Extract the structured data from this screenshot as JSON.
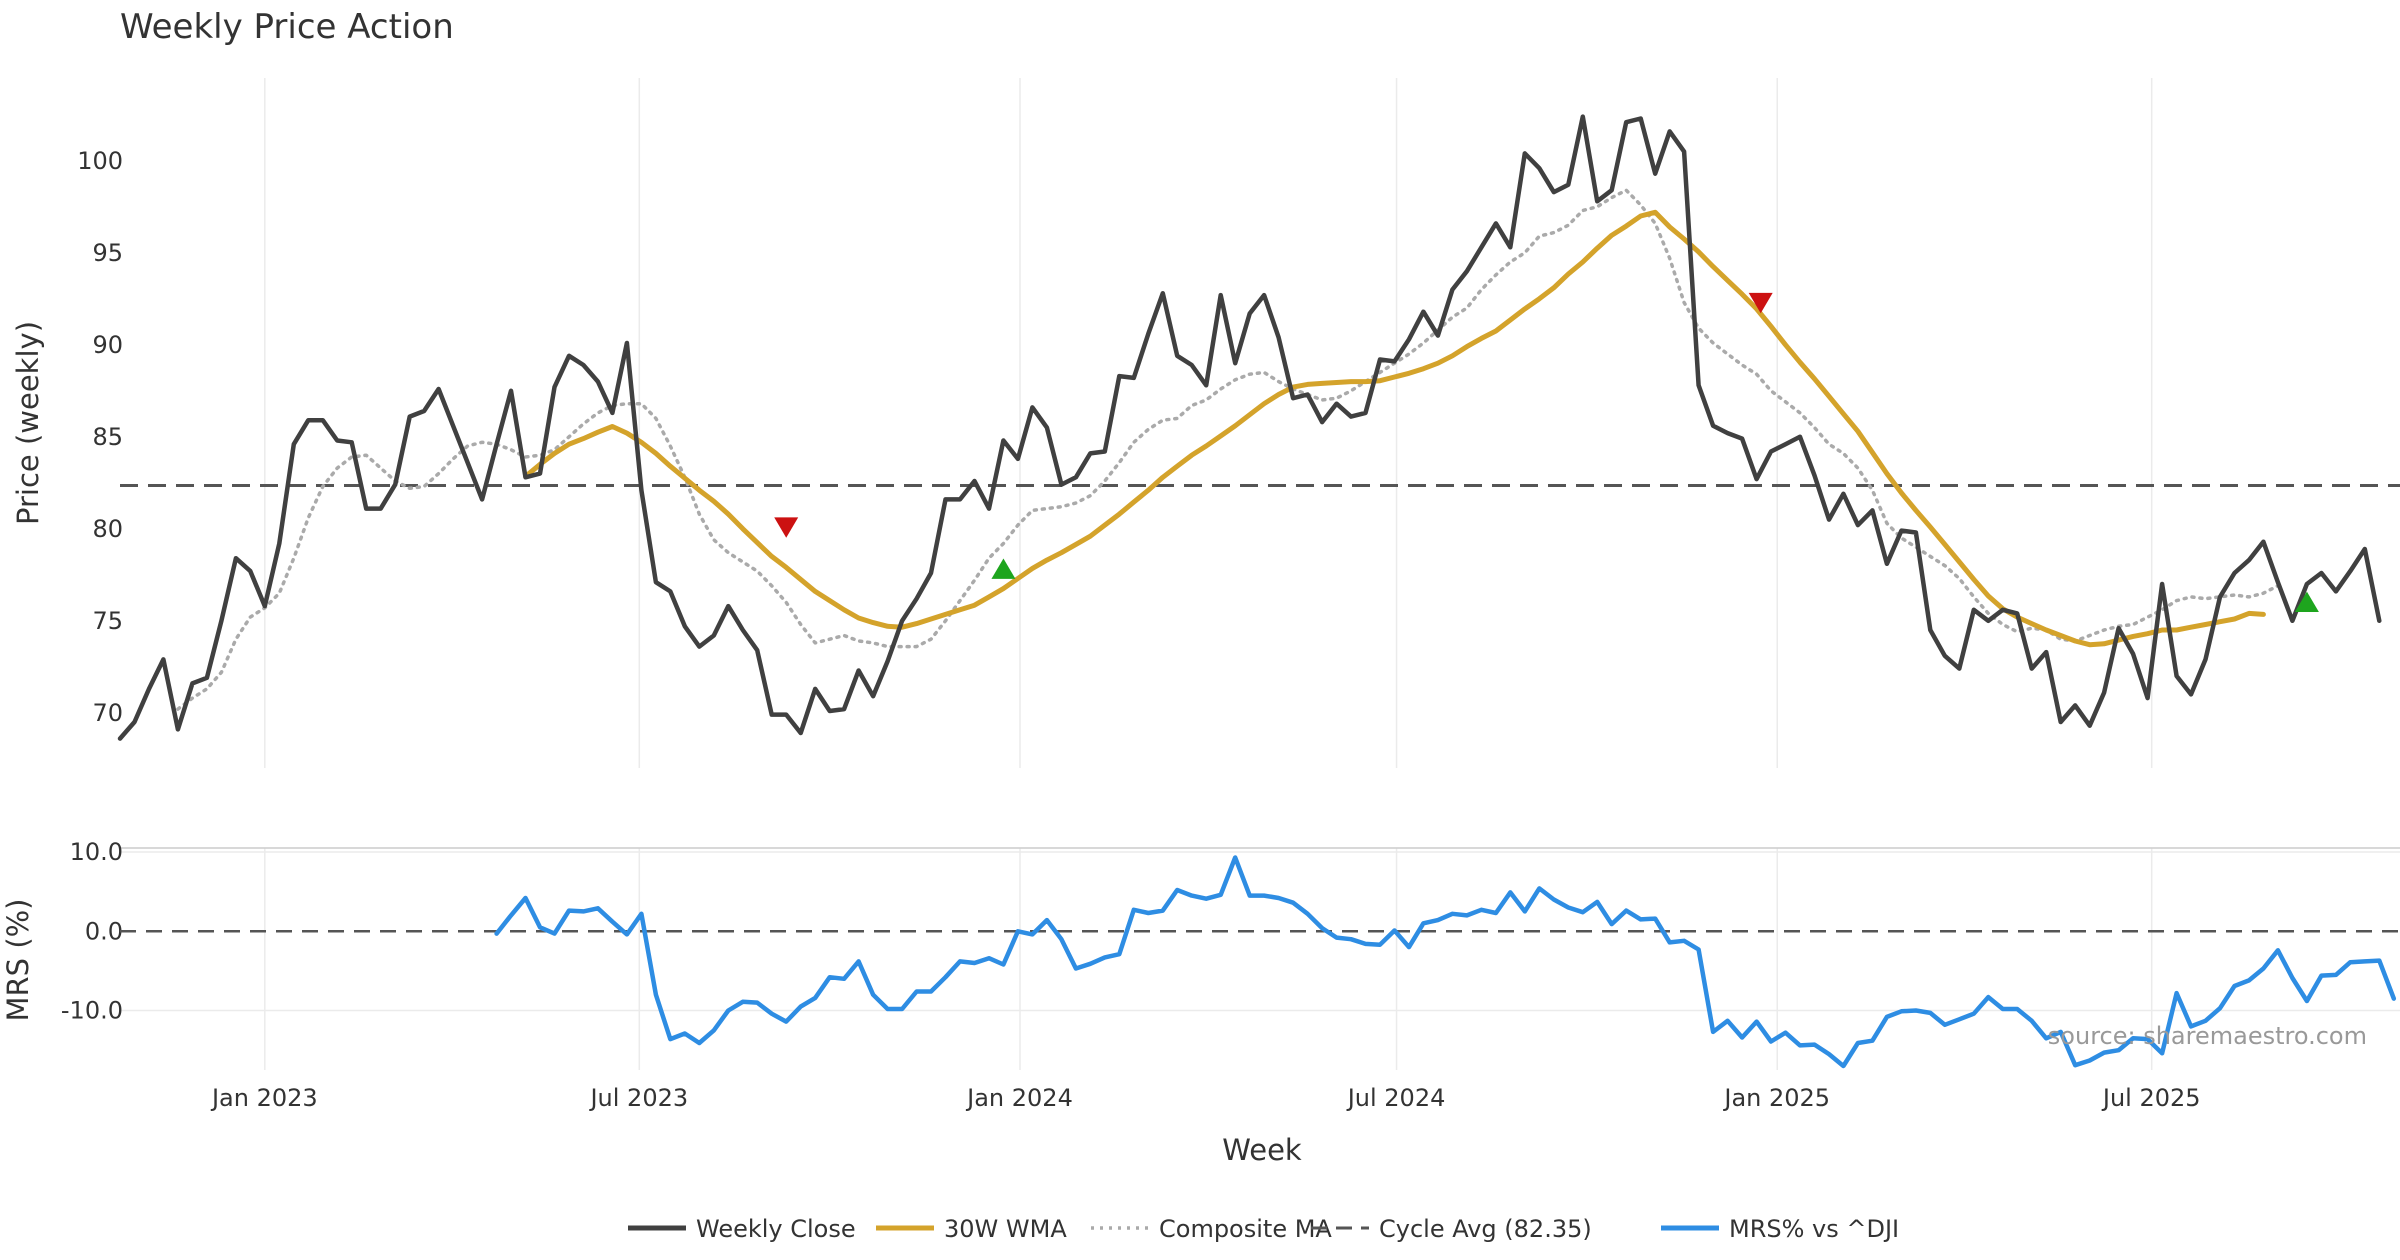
{
  "title": "Weekly Price Action",
  "source": "source: sharemaestro.com",
  "colors": {
    "close": "#404040",
    "wma": "#d4a32b",
    "composite": "#aaaaaa",
    "cycle": "#555555",
    "mrs": "#2e8de3",
    "sell": "#cc1111",
    "buy": "#1ea51e",
    "grid": "#ebebeb"
  },
  "chart_data": [
    {
      "type": "line",
      "title": "Weekly Price Action",
      "ylabel": "Price (weekly)",
      "xlabel": "Week",
      "grid": true,
      "legend_position": "bottom",
      "ylim": [
        67.0,
        104.5
      ],
      "xlim": [
        "2022-10-23",
        "2025-10-29"
      ],
      "x_ticks": [
        "2023-01-01",
        "2023-07-01",
        "2024-01-01",
        "2024-07-01",
        "2025-01-01",
        "2025-07-01"
      ],
      "y_ticks": [
        70,
        75,
        80,
        85,
        90,
        95,
        100
      ],
      "start_date": "2022-10-23",
      "series": [
        {
          "name": "Weekly Close",
          "style": "solid",
          "values": [
            68.6,
            69.5,
            71.3,
            72.9,
            69.1,
            71.6,
            71.9,
            75.0,
            78.4,
            77.7,
            75.8,
            79.2,
            84.6,
            85.9,
            85.9,
            84.8,
            84.7,
            81.1,
            81.1,
            82.4,
            86.1,
            86.4,
            87.6,
            85.6,
            83.6,
            81.6,
            84.6,
            87.5,
            82.8,
            83.0,
            87.7,
            89.4,
            88.9,
            88.0,
            86.3,
            90.1,
            82.1,
            77.1,
            76.6,
            74.7,
            73.6,
            74.2,
            75.8,
            74.5,
            73.4,
            69.9,
            69.9,
            68.9,
            71.3,
            70.1,
            70.2,
            72.3,
            70.9,
            72.8,
            75.0,
            76.2,
            77.6,
            81.6,
            81.6,
            82.6,
            81.1,
            84.8,
            83.8,
            86.6,
            85.5,
            82.4,
            82.8,
            84.1,
            84.2,
            88.3,
            88.2,
            90.6,
            92.8,
            89.4,
            88.9,
            87.8,
            92.7,
            89.0,
            91.7,
            92.7,
            90.4,
            87.1,
            87.3,
            85.8,
            86.8,
            86.1,
            86.3,
            89.2,
            89.1,
            90.3,
            91.8,
            90.5,
            93.0,
            94.0,
            95.3,
            96.6,
            95.3,
            100.4,
            99.6,
            98.3,
            98.7,
            102.4,
            97.8,
            98.4,
            102.1,
            102.3,
            99.3,
            101.6,
            100.5,
            87.8,
            85.6,
            85.2,
            84.9,
            82.7,
            84.2,
            84.6,
            85.0,
            82.9,
            80.5,
            81.9,
            80.2,
            81.0,
            78.1,
            79.9,
            79.8,
            74.5,
            73.1,
            72.4,
            75.6,
            75.0,
            75.6,
            75.4,
            72.4,
            73.3,
            69.5,
            70.4,
            69.3,
            71.1,
            74.6,
            73.2,
            70.8,
            77.0,
            72.0,
            71.0,
            72.9,
            76.3,
            77.6,
            78.3,
            79.3,
            77.1,
            75.0,
            77.0,
            77.6,
            76.6,
            77.7,
            78.9,
            75.0
          ]
        },
        {
          "name": "30W WMA",
          "style": "solid",
          "start_index": 28,
          "values": [
            82.85,
            83.5,
            84.1,
            84.6,
            84.9,
            85.25,
            85.56,
            85.2,
            84.7,
            84.1,
            83.4,
            82.75,
            82.1,
            81.5,
            80.8,
            80.0,
            79.25,
            78.5,
            77.9,
            77.25,
            76.6,
            76.1,
            75.6,
            75.15,
            74.9,
            74.7,
            74.65,
            74.85,
            75.1,
            75.35,
            75.6,
            75.85,
            76.3,
            76.75,
            77.3,
            77.85,
            78.3,
            78.7,
            79.15,
            79.6,
            80.2,
            80.8,
            81.45,
            82.1,
            82.8,
            83.4,
            84.0,
            84.5,
            85.05,
            85.6,
            86.2,
            86.8,
            87.3,
            87.7,
            87.85,
            87.9,
            87.95,
            88.0,
            88.0,
            88.05,
            88.25,
            88.45,
            88.7,
            89.0,
            89.4,
            89.9,
            90.35,
            90.75,
            91.35,
            91.95,
            92.5,
            93.1,
            93.85,
            94.5,
            95.25,
            95.95,
            96.45,
            97.0,
            97.2,
            96.4,
            95.75,
            95.05,
            94.25,
            93.5,
            92.75,
            91.95,
            91.0,
            90.0,
            89.05,
            88.15,
            87.2,
            86.25,
            85.3,
            84.15,
            83.0,
            81.95,
            81.0,
            80.1,
            79.15,
            78.2,
            77.25,
            76.35,
            75.65,
            75.2,
            74.85,
            74.5,
            74.2,
            73.9,
            73.7,
            73.75,
            73.95,
            74.15,
            74.3,
            74.5,
            74.5,
            74.65,
            74.8,
            74.95,
            75.1,
            75.4,
            75.35
          ]
        },
        {
          "name": "Composite MA",
          "style": "dotted",
          "start_index": 4,
          "values": [
            70.2,
            70.8,
            71.3,
            72.2,
            74.0,
            75.2,
            75.7,
            76.5,
            78.4,
            80.6,
            82.3,
            83.3,
            83.9,
            84.0,
            83.3,
            82.6,
            82.2,
            82.3,
            83.0,
            83.8,
            84.5,
            84.7,
            84.6,
            84.3,
            83.9,
            84.0,
            84.3,
            85.0,
            85.7,
            86.3,
            86.7,
            86.8,
            86.8,
            86.0,
            84.5,
            82.8,
            80.8,
            79.4,
            78.7,
            78.2,
            77.7,
            76.9,
            76.0,
            74.8,
            73.8,
            74.0,
            74.2,
            73.9,
            73.8,
            73.6,
            73.6,
            73.6,
            74.0,
            75.0,
            76.1,
            77.2,
            78.4,
            79.2,
            80.2,
            81.0,
            81.1,
            81.2,
            81.4,
            81.8,
            82.6,
            83.6,
            84.7,
            85.4,
            85.9,
            86.0,
            86.7,
            87.0,
            87.6,
            88.1,
            88.4,
            88.5,
            88.0,
            87.6,
            87.3,
            87.0,
            87.1,
            87.5,
            88.0,
            88.5,
            89.0,
            89.5,
            90.1,
            90.8,
            91.5,
            92.0,
            93.0,
            93.8,
            94.5,
            95.0,
            95.9,
            96.1,
            96.5,
            97.3,
            97.5,
            98.0,
            98.4,
            97.6,
            96.6,
            94.7,
            92.3,
            90.9,
            90.1,
            89.5,
            88.9,
            88.4,
            87.5,
            86.9,
            86.3,
            85.5,
            84.6,
            84.1,
            83.3,
            82.1,
            80.3,
            79.5,
            79.0,
            78.5,
            78.0,
            77.3,
            76.3,
            75.4,
            74.8,
            74.4,
            74.6,
            74.5,
            74.0,
            73.9,
            74.2,
            74.5,
            74.7,
            74.8,
            75.2,
            75.6,
            76.1,
            76.3,
            76.2,
            76.3,
            76.4,
            76.3,
            76.5,
            76.9
          ]
        },
        {
          "name": "Cycle Avg (82.35)",
          "style": "dashed",
          "constant": 82.35
        }
      ],
      "annotations": [
        {
          "marker": "sell",
          "date": "2023-09-10",
          "y": 80.1
        },
        {
          "marker": "buy",
          "date": "2023-12-24",
          "y": 77.8
        },
        {
          "marker": "sell",
          "date": "2024-12-24",
          "y": 92.3
        },
        {
          "marker": "buy",
          "date": "2025-09-14",
          "y": 76.0
        }
      ]
    },
    {
      "type": "line",
      "ylabel": "MRS (%)",
      "xlabel": "Week",
      "grid": true,
      "ylim": [
        -17.5,
        10.5
      ],
      "xlim": [
        "2022-10-23",
        "2025-10-29"
      ],
      "y_ticks": [
        10.0,
        0.0,
        -10.0
      ],
      "start_date": "2022-10-23",
      "reference_line": 0.0,
      "series": [
        {
          "name": "MRS% vs ^DJI",
          "start_index": 26,
          "values": [
            -0.3,
            2.0,
            4.2,
            0.5,
            -0.3,
            2.6,
            2.5,
            2.9,
            1.2,
            -0.4,
            2.2,
            -8.0,
            -13.6,
            -12.9,
            -14.1,
            -12.5,
            -10.0,
            -8.9,
            -9.0,
            -10.4,
            -11.4,
            -9.5,
            -8.4,
            -5.8,
            -6.0,
            -3.8,
            -8.0,
            -9.8,
            -9.8,
            -7.6,
            -7.6,
            -5.8,
            -3.8,
            -4.0,
            -3.4,
            -4.2,
            0.0,
            -0.4,
            1.4,
            -1.0,
            -4.7,
            -4.1,
            -3.3,
            -2.9,
            2.7,
            2.3,
            2.6,
            5.2,
            4.5,
            4.1,
            4.6,
            9.3,
            4.5,
            4.5,
            4.2,
            3.6,
            2.2,
            0.4,
            -0.8,
            -1.0,
            -1.6,
            -1.7,
            0.1,
            -2.0,
            1.0,
            1.4,
            2.2,
            2.0,
            2.7,
            2.3,
            4.9,
            2.5,
            5.4,
            4.0,
            3.0,
            2.4,
            3.7,
            0.9,
            2.6,
            1.5,
            1.6,
            -1.4,
            -1.2,
            -2.3,
            -12.7,
            -11.3,
            -13.4,
            -11.4,
            -13.9,
            -12.8,
            -14.4,
            -14.3,
            -15.5,
            -17.0,
            -14.1,
            -13.8,
            -10.8,
            -10.1,
            -10.0,
            -10.3,
            -11.8,
            -11.1,
            -10.4,
            -8.3,
            -9.8,
            -9.8,
            -11.3,
            -13.5,
            -12.7,
            -16.9,
            -16.3,
            -15.3,
            -15.0,
            -13.5,
            -13.6,
            -15.4,
            -7.8,
            -12.0,
            -11.3,
            -9.7,
            -6.9,
            -6.2,
            -4.7,
            -2.4,
            -5.9,
            -8.8,
            -5.6,
            -5.5,
            -3.9,
            -3.8,
            -3.7,
            -8.5
          ]
        }
      ]
    }
  ],
  "legend": [
    {
      "label": "Weekly Close",
      "style": "solid",
      "color_key": "close"
    },
    {
      "label": "30W WMA",
      "style": "solid",
      "color_key": "wma"
    },
    {
      "label": "Composite MA",
      "style": "dotted",
      "color_key": "composite"
    },
    {
      "label": "Cycle Avg (82.35)",
      "style": "dashed",
      "color_key": "cycle"
    },
    {
      "label": "MRS% vs ^DJI",
      "style": "solid",
      "color_key": "mrs"
    }
  ]
}
